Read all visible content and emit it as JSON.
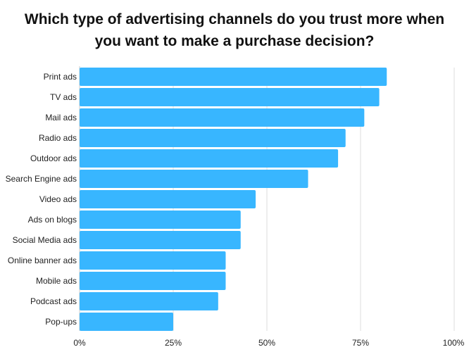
{
  "chart_data": {
    "type": "bar",
    "orientation": "horizontal",
    "title_line1": "Which type of advertising channels do you trust more when",
    "title_line2": "you want to make a purchase decision?",
    "categories": [
      "Print ads",
      "TV ads",
      "Mail ads",
      "Radio ads",
      "Outdoor ads",
      "Search Engine ads",
      "Video ads",
      "Ads on blogs",
      "Social Media ads",
      "Online banner ads",
      "Mobile ads",
      "Podcast ads",
      "Pop-ups"
    ],
    "values": [
      82,
      80,
      76,
      71,
      69,
      61,
      47,
      43,
      43,
      39,
      39,
      37,
      25
    ],
    "xlim": [
      0,
      100
    ],
    "xticks": [
      0,
      25,
      50,
      75,
      100
    ],
    "xtick_labels": [
      "0%",
      "25%",
      "50%",
      "75%",
      "100%"
    ],
    "bar_color": "#38b6ff",
    "grid": true
  }
}
